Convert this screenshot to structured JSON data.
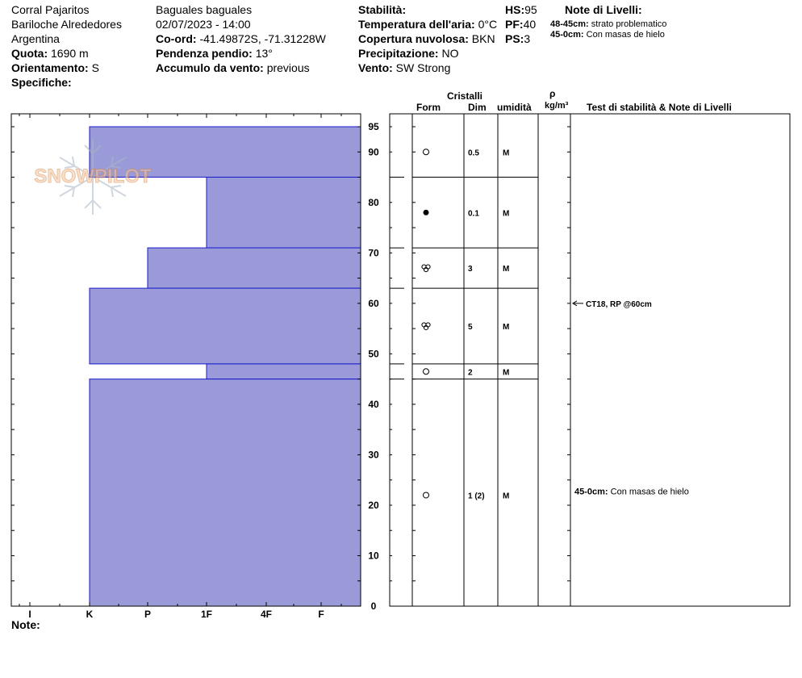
{
  "header": {
    "site": {
      "location": "Corral Pajaritos",
      "region": "Bariloche Alrededores",
      "country": "Argentina",
      "elevation_label": "Quota:",
      "elevation_value": "1690 m",
      "aspect_label": "Orientamento:",
      "aspect_value": "S",
      "specifics_label": "Specifiche:"
    },
    "obs": {
      "observer": "Baguales baguales",
      "datetime": "02/07/2023 - 14:00",
      "coord_label": "Co-ord:",
      "coord_value": "-41.49872S, -71.31228W",
      "slope_label": "Pendenza pendio:",
      "slope_value": "13°",
      "wind_load_label": "Accumulo da vento:",
      "wind_load_value": "previous"
    },
    "conditions": {
      "stability_label": "Stabilità:",
      "stability_value": "",
      "air_temp_label": "Temperatura dell'aria:",
      "air_temp_value": "0°C",
      "cloud_label": "Copertura nuvolosa:",
      "cloud_value": "BKN",
      "precip_label": "Precipitazione:",
      "precip_value": "NO",
      "wind_label": "Vento:",
      "wind_value": "SW Strong"
    },
    "depths": {
      "hs_label": "HS:",
      "hs_value": "95",
      "pf_label": "PF:",
      "pf_value": "40",
      "ps_label": "PS:",
      "ps_value": "3"
    },
    "layer_notes": {
      "title": "Note di Livelli:",
      "items": [
        {
          "range": "48-45cm:",
          "text": "strato problematico"
        },
        {
          "range": "45-0cm:",
          "text": "Con masas de hielo"
        }
      ]
    }
  },
  "watermark": {
    "text": "SNOWPILOT"
  },
  "column_headers": {
    "crystals": "Cristalli",
    "form": "Form",
    "dim": "Dim",
    "moisture": "umidità",
    "density_symbol": "ρ",
    "density_unit": "kg/m³",
    "stability_notes": "Test di stabilità & Note di Livelli"
  },
  "footer": {
    "note_label": "Note:"
  },
  "chart_data": {
    "type": "bar",
    "orientation": "horizontal-profile",
    "y_axis": {
      "min": 0,
      "max": 95,
      "ticks": [
        0,
        10,
        20,
        30,
        40,
        50,
        60,
        70,
        80,
        90,
        95
      ]
    },
    "x_axis": {
      "categories": [
        "I",
        "K",
        "P",
        "1F",
        "4F",
        "F"
      ]
    },
    "layers": [
      {
        "top": 95,
        "bottom": 85,
        "hardness": "K",
        "hardness_index": 1,
        "form": "round",
        "size": "0.5",
        "moisture": "M"
      },
      {
        "top": 85,
        "bottom": 71,
        "hardness": "1F",
        "hardness_index": 3,
        "form": "dot",
        "size": "0.1",
        "moisture": "M"
      },
      {
        "top": 71,
        "bottom": 63,
        "hardness": "P",
        "hardness_index": 2,
        "form": "melt-cluster",
        "size": "3",
        "moisture": "M"
      },
      {
        "top": 63,
        "bottom": 48,
        "hardness": "K",
        "hardness_index": 1,
        "form": "melt-cluster",
        "size": "5",
        "moisture": "M"
      },
      {
        "top": 48,
        "bottom": 45,
        "hardness": "1F",
        "hardness_index": 3,
        "form": "round",
        "size": "2",
        "moisture": "M"
      },
      {
        "top": 45,
        "bottom": 0,
        "hardness": "K",
        "hardness_index": 1,
        "form": "round",
        "size": "1 (2)",
        "moisture": "M"
      }
    ],
    "stability_tests": [
      {
        "depth": 60,
        "label": "CT18, RP @60cm"
      }
    ],
    "layer_comments": [
      {
        "depth": 22,
        "range": "45-0cm:",
        "text": "Con masas de hielo"
      }
    ]
  }
}
